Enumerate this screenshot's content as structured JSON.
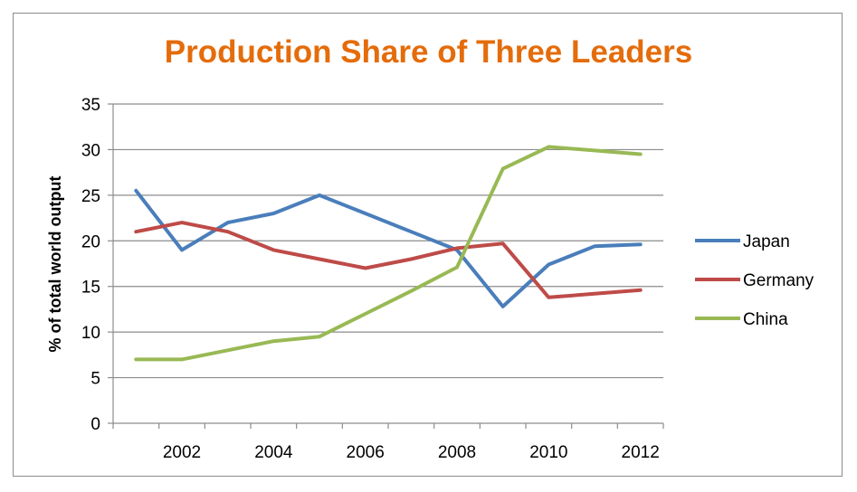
{
  "chart_data": {
    "type": "line",
    "title": "Production Share of Three Leaders",
    "xlabel": "",
    "ylabel": "% of total world output",
    "x": [
      2001,
      2002,
      2003,
      2004,
      2005,
      2006,
      2007,
      2008,
      2009,
      2010,
      2011,
      2012
    ],
    "xlim": [
      2000.5,
      2012.5
    ],
    "ylim": [
      0,
      35
    ],
    "yticks": [
      "0",
      "5",
      "10",
      "15",
      "20",
      "25",
      "30",
      "35"
    ],
    "xticks": [
      "2002",
      "2004",
      "2006",
      "2008",
      "2010",
      "2012"
    ],
    "grid": "horizontal",
    "legend_position": "right",
    "series": [
      {
        "name": "Japan",
        "color": "#4a7ebb",
        "values": [
          25.5,
          19,
          22,
          23,
          25,
          23,
          21,
          19,
          12.8,
          17.4,
          19.4,
          19.6
        ]
      },
      {
        "name": "Germany",
        "color": "#be4b48",
        "values": [
          21,
          22,
          21,
          19,
          18,
          17,
          18,
          19.2,
          19.7,
          13.8,
          14.2,
          14.6
        ]
      },
      {
        "name": "China",
        "color": "#98b954",
        "values": [
          7,
          7,
          8,
          9,
          9.5,
          12,
          14.5,
          17.1,
          27.9,
          30.3,
          29.9,
          29.5
        ]
      }
    ]
  }
}
